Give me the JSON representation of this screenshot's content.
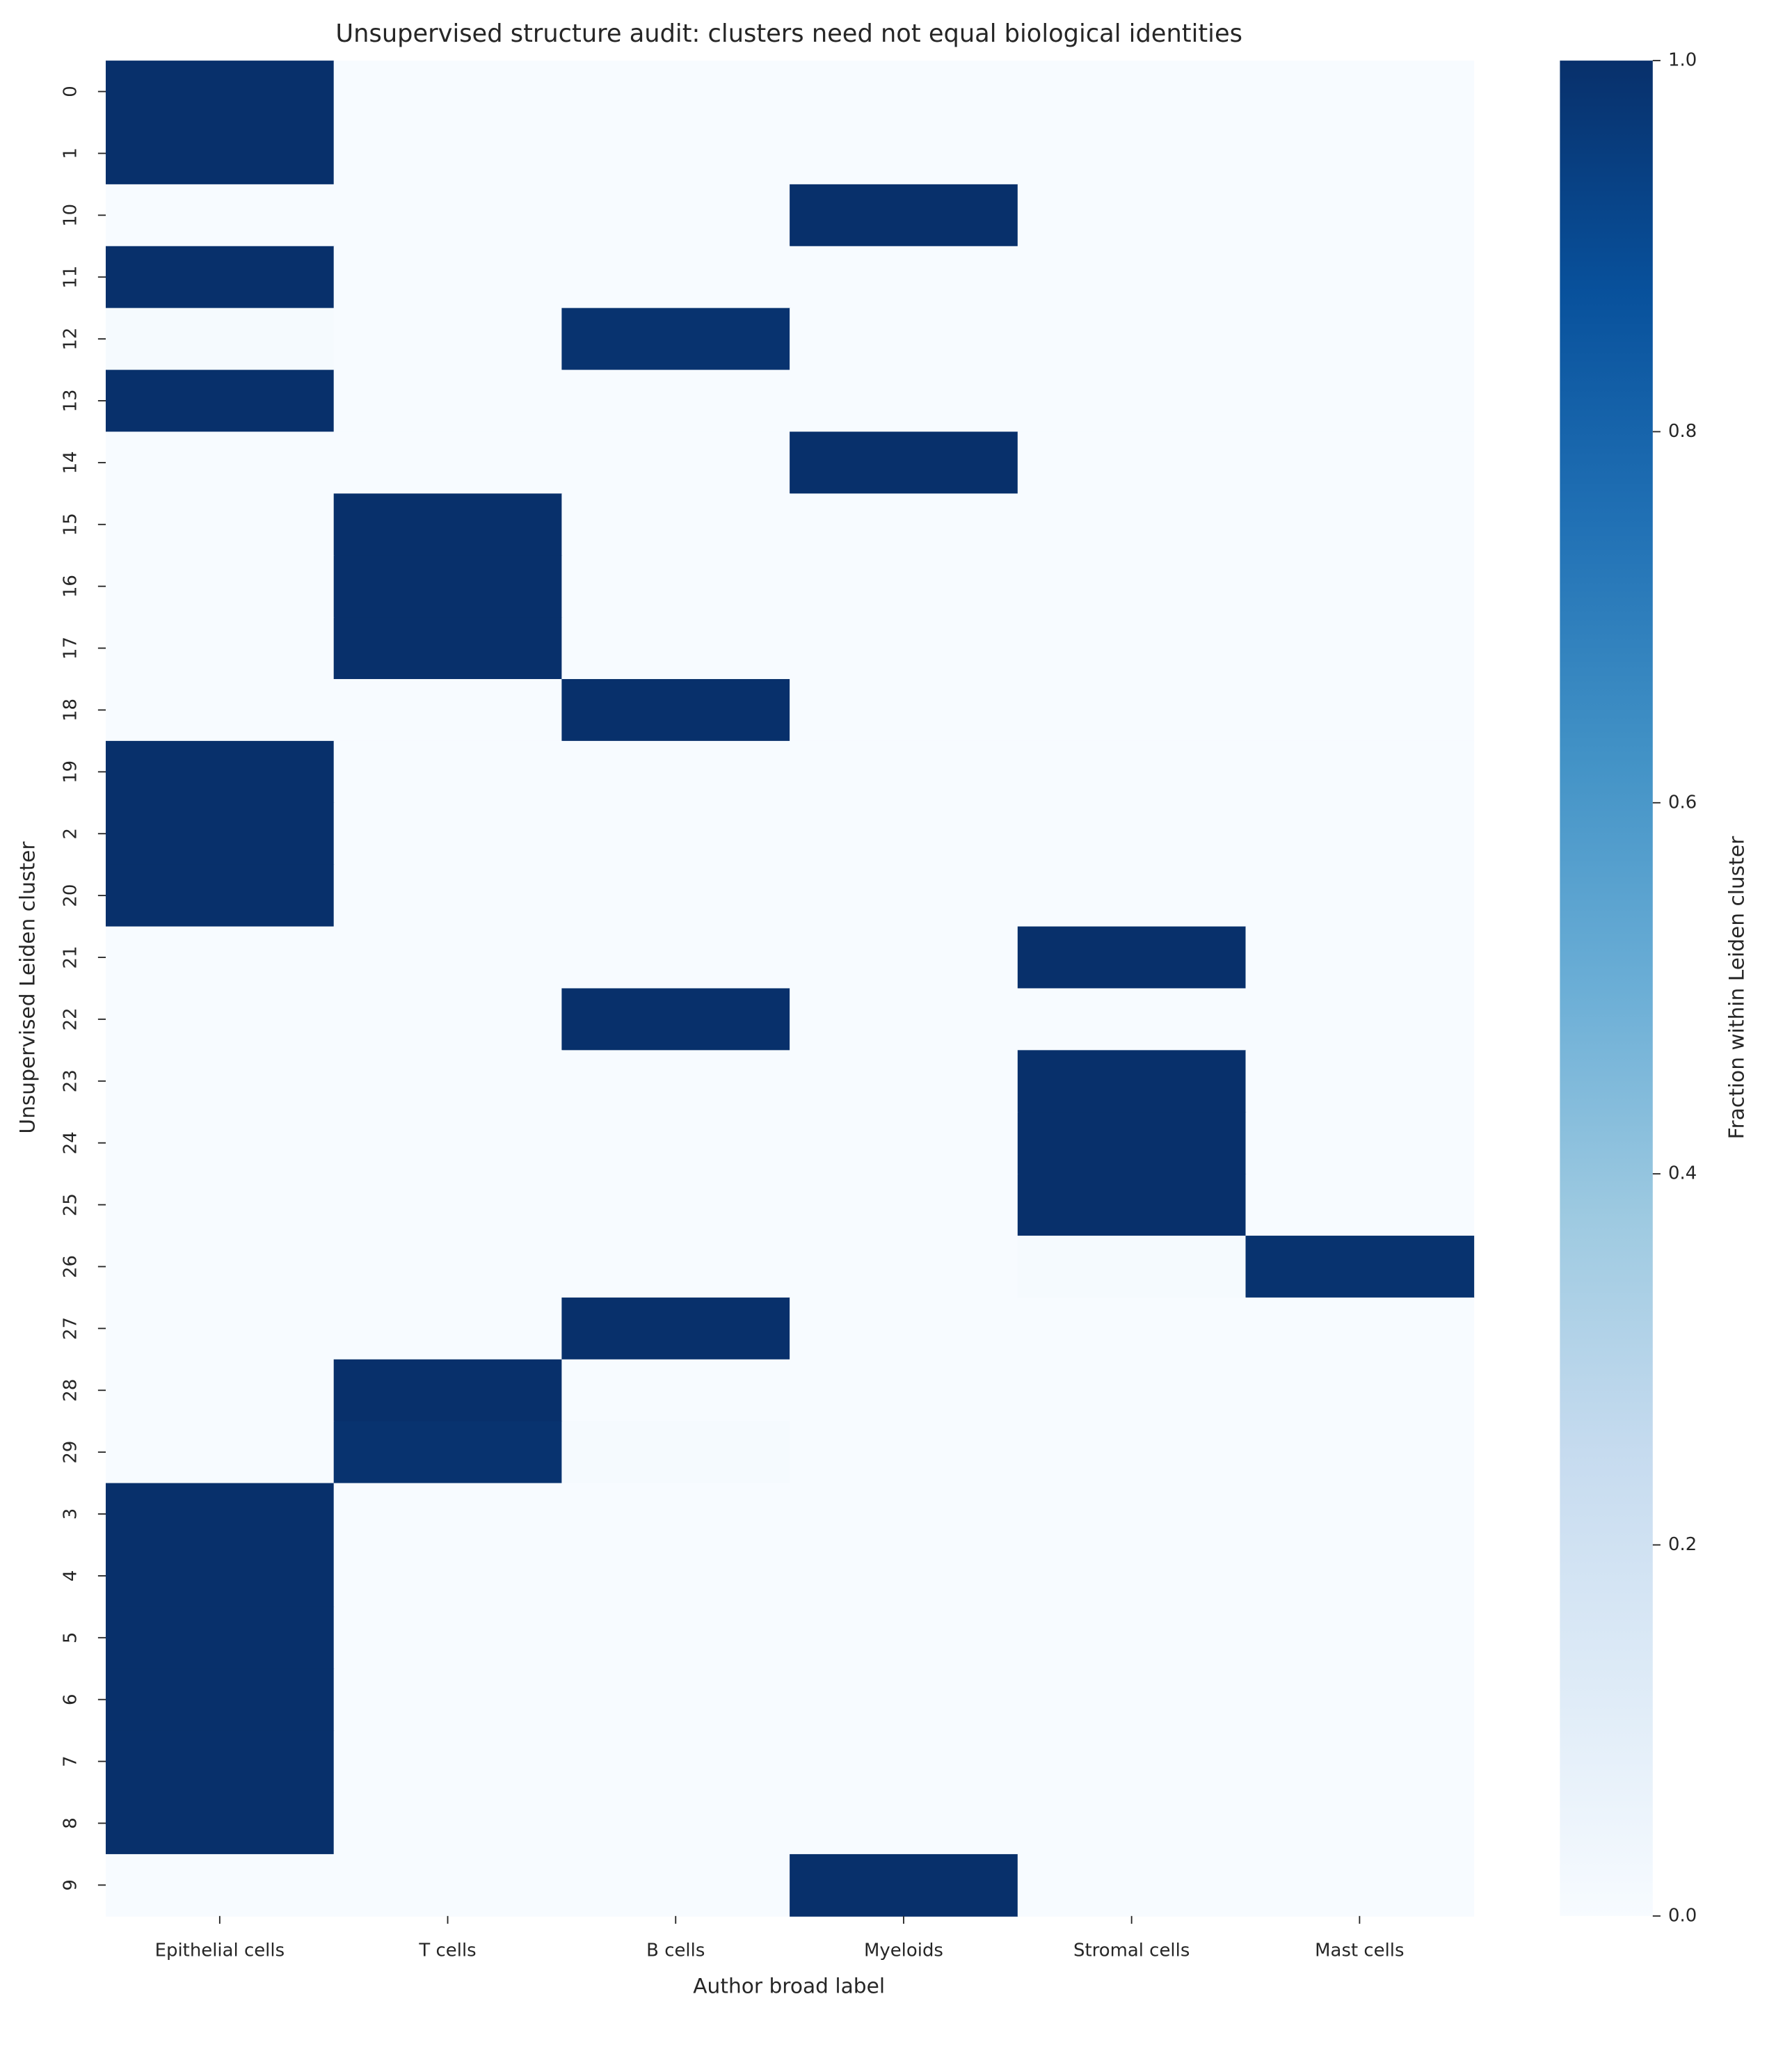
{
  "chart_data": {
    "type": "heatmap",
    "title": "Unsupervised structure audit: clusters need not equal biological identities",
    "xlabel": "Author broad label",
    "ylabel": "Unsupervised Leiden cluster",
    "colorbar_label": "Fraction within Leiden cluster",
    "colormap": "Blues",
    "categories": [
      "Epithelial cells",
      "T cells",
      "B cells",
      "Myeloids",
      "Stromal cells",
      "Mast cells"
    ],
    "rows": [
      "0",
      "1",
      "10",
      "11",
      "12",
      "13",
      "14",
      "15",
      "16",
      "17",
      "18",
      "19",
      "2",
      "20",
      "21",
      "22",
      "23",
      "24",
      "25",
      "26",
      "27",
      "28",
      "29",
      "3",
      "4",
      "5",
      "6",
      "7",
      "8",
      "9"
    ],
    "values": [
      [
        1,
        0,
        0,
        0,
        0,
        0
      ],
      [
        1,
        0,
        0,
        0,
        0,
        0
      ],
      [
        0,
        0,
        0,
        1,
        0,
        0
      ],
      [
        1,
        0,
        0,
        0,
        0,
        0
      ],
      [
        0.01,
        0,
        0.99,
        0,
        0,
        0
      ],
      [
        1,
        0,
        0,
        0,
        0,
        0
      ],
      [
        0,
        0,
        0,
        1,
        0,
        0
      ],
      [
        0,
        1,
        0,
        0,
        0,
        0
      ],
      [
        0,
        1,
        0,
        0,
        0,
        0
      ],
      [
        0,
        1,
        0,
        0,
        0,
        0
      ],
      [
        0,
        0,
        1,
        0,
        0,
        0
      ],
      [
        1,
        0,
        0,
        0,
        0,
        0
      ],
      [
        1,
        0,
        0,
        0,
        0,
        0
      ],
      [
        1,
        0,
        0,
        0,
        0,
        0
      ],
      [
        0,
        0,
        0,
        0,
        1,
        0
      ],
      [
        0,
        0,
        1,
        0,
        0,
        0
      ],
      [
        0,
        0,
        0,
        0,
        1,
        0
      ],
      [
        0,
        0,
        0,
        0,
        1,
        0
      ],
      [
        0,
        0,
        0,
        0,
        1,
        0
      ],
      [
        0,
        0,
        0,
        0,
        0.01,
        0.99
      ],
      [
        0,
        0,
        1,
        0,
        0,
        0
      ],
      [
        0,
        1,
        0,
        0,
        0,
        0
      ],
      [
        0,
        0.99,
        0.01,
        0,
        0,
        0
      ],
      [
        1,
        0,
        0,
        0,
        0,
        0
      ],
      [
        1,
        0,
        0,
        0,
        0,
        0
      ],
      [
        1,
        0,
        0,
        0,
        0,
        0
      ],
      [
        1,
        0,
        0,
        0,
        0,
        0
      ],
      [
        1,
        0,
        0,
        0,
        0,
        0
      ],
      [
        1,
        0,
        0,
        0,
        0,
        0
      ],
      [
        0,
        0,
        0,
        1,
        0,
        0
      ]
    ],
    "clim": [
      0,
      1
    ],
    "cticks": [
      {
        "value": 0,
        "label": "0.0"
      },
      {
        "value": 0.2,
        "label": "0.2"
      },
      {
        "value": 0.4,
        "label": "0.4"
      },
      {
        "value": 0.6,
        "label": "0.6"
      },
      {
        "value": 0.8,
        "label": "0.8"
      },
      {
        "value": 1,
        "label": "1.0"
      }
    ]
  }
}
